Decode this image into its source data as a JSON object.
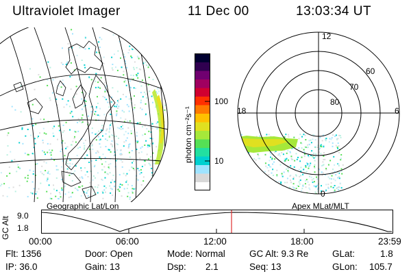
{
  "header": {
    "instrument": "Ultraviolet Imager",
    "date": "11 Dec 00",
    "time": "13:03:34 UT"
  },
  "colorbar": {
    "unit_label": "photon cm⁻²s⁻¹",
    "ticks": [
      "100",
      "10"
    ],
    "colors": [
      "#ffffff",
      "#d8d8d8",
      "#9fe3ff",
      "#00d0d0",
      "#22e0a0",
      "#55e055",
      "#a6e83a",
      "#e0e020",
      "#ffc000",
      "#ff7a00",
      "#ff3000",
      "#d00030",
      "#a00060",
      "#700070",
      "#300050",
      "#000030"
    ]
  },
  "left_panel": {
    "label": "Geographic Lat/Lon"
  },
  "right_panel": {
    "label": "Apex MLat/MLT",
    "mlt_labels": {
      "top": "12",
      "left": "18",
      "right": "6",
      "bottom": "0"
    },
    "lat_labels": [
      "60",
      "70",
      "80"
    ]
  },
  "timeline": {
    "y_label": "GC Alt",
    "y_ticks": [
      "9.0",
      "1.8"
    ],
    "x_ticks": [
      "00:00",
      "06:00",
      "12:00",
      "18:00",
      "23:59"
    ],
    "marker_color": "#e03030",
    "marker_time": "13:03:34"
  },
  "footer": {
    "flt": "Flt: 1356",
    "ip": "IP: 36.0",
    "door": "Door: Open",
    "gain": "Gain: 13",
    "mode": "Mode: Normal",
    "dsp_label": "Dsp:",
    "dsp_value": "2.1",
    "gc_alt": "GC Alt: 9.3 Re",
    "seq": "Seq: 13",
    "glat_label": "GLat:",
    "glat_value": "1.8",
    "glon_label": "GLon:",
    "glon_value": "105.7"
  }
}
